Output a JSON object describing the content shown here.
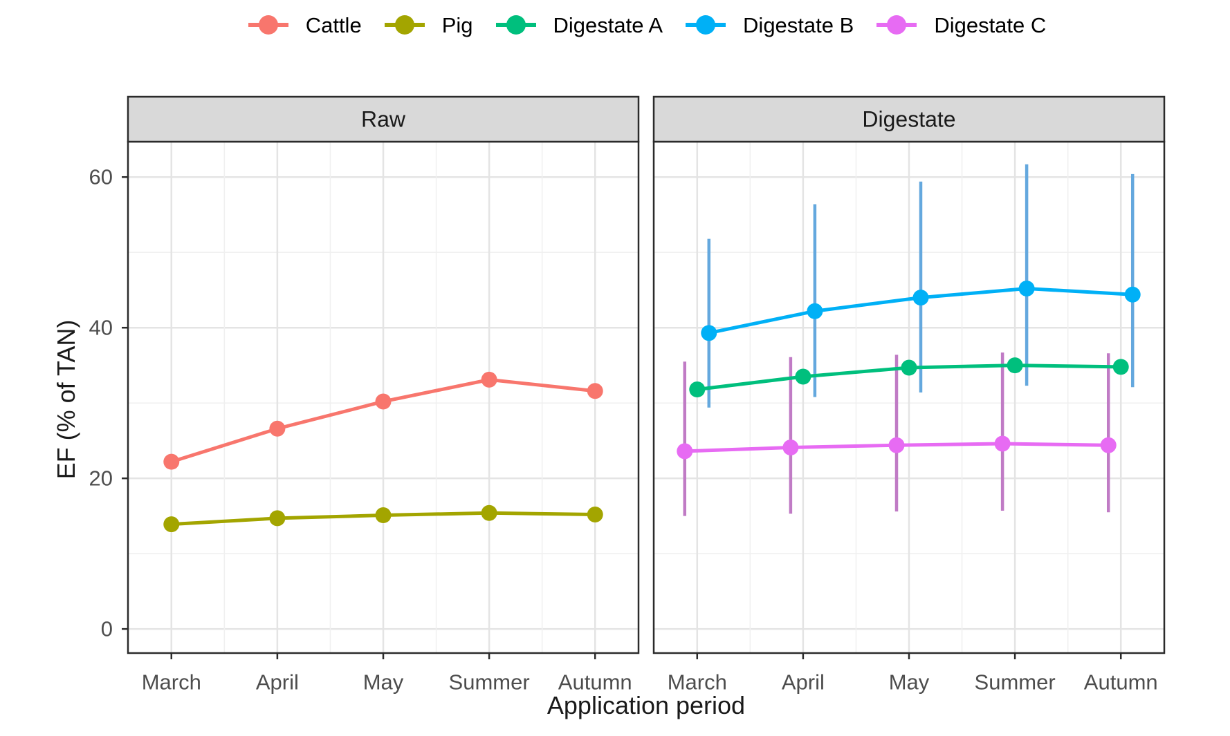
{
  "legend": {
    "items": [
      {
        "label": "Cattle",
        "color": "#F8766D"
      },
      {
        "label": "Pig",
        "color": "#A3A500"
      },
      {
        "label": "Digestate A",
        "color": "#00BF7D"
      },
      {
        "label": "Digestate B",
        "color": "#00B0F6"
      },
      {
        "label": "Digestate C",
        "color": "#E76BF3"
      }
    ]
  },
  "chart_data": {
    "type": "line",
    "xlabel": "Application period",
    "ylabel": "EF (% of TAN)",
    "categories": [
      "March",
      "April",
      "May",
      "Summer",
      "Autumn"
    ],
    "y_ticks": [
      0,
      20,
      40,
      60
    ],
    "y_minor_ticks": [
      10,
      30,
      50
    ],
    "ylim": [
      -3.2,
      64.7
    ],
    "grid": true,
    "legend_position": "top",
    "panels": [
      {
        "label": "Raw",
        "series": [
          {
            "name": "Cattle",
            "color": "#F8766D",
            "dodge": 0,
            "values": [
              22.2,
              26.6,
              30.2,
              33.1,
              31.6
            ]
          },
          {
            "name": "Pig",
            "color": "#A3A500",
            "dodge": 0,
            "values": [
              13.9,
              14.7,
              15.1,
              15.4,
              15.2
            ]
          }
        ]
      },
      {
        "label": "Digestate",
        "series": [
          {
            "name": "Digestate A",
            "color": "#00BF7D",
            "dodge": 0,
            "values": [
              31.8,
              33.5,
              34.7,
              35.0,
              34.8
            ]
          },
          {
            "name": "Digestate B",
            "color": "#00B0F6",
            "error_color": "#64A8DE",
            "dodge": 17,
            "values": [
              39.3,
              42.2,
              44.0,
              45.2,
              44.4
            ],
            "error_low": [
              29.4,
              30.8,
              31.4,
              32.3,
              32.1
            ],
            "error_high": [
              51.8,
              56.4,
              59.4,
              61.7,
              60.4
            ]
          },
          {
            "name": "Digestate C",
            "color": "#E76BF3",
            "error_color": "#C07BC5",
            "dodge": -18,
            "values": [
              23.6,
              24.1,
              24.4,
              24.6,
              24.4
            ],
            "error_low": [
              15.0,
              15.3,
              15.6,
              15.7,
              15.5
            ],
            "error_high": [
              35.5,
              36.1,
              36.4,
              36.7,
              36.6
            ]
          }
        ]
      }
    ],
    "strip_bg": "#D9D9D9",
    "border_color": "#2B2B2B",
    "grid_major_color": "#E4E4E4",
    "grid_minor_color": "#F0F0F0",
    "tick_label_color": "#4d4d4d"
  }
}
